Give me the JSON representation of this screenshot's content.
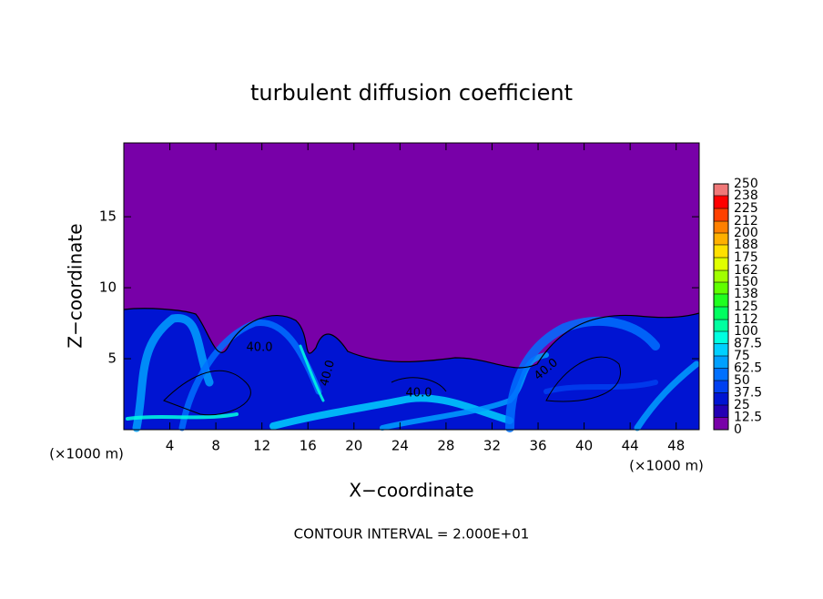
{
  "chart_data": {
    "type": "contour",
    "title": "turbulent diffusion coefficient",
    "xlabel": "X−coordinate",
    "ylabel": "Z−coordinate",
    "x_unit_left": "(×1000 m)",
    "x_unit_right": "(×1000 m)",
    "annotation": "CONTOUR INTERVAL = 2.000E+01",
    "xlim": [
      0,
      50
    ],
    "xticks": [
      4,
      8,
      12,
      16,
      20,
      24,
      28,
      32,
      36,
      40,
      44,
      48
    ],
    "ylim": [
      0,
      20.2
    ],
    "yticks": [
      5,
      10,
      15
    ],
    "contour_labels": [
      {
        "value": 40,
        "label": "40.0"
      },
      {
        "value": 40,
        "label": "40.0"
      },
      {
        "value": 40,
        "label": "40.0"
      },
      {
        "value": 40,
        "label": "40.0"
      }
    ],
    "colorbar": {
      "levels": [
        0,
        12.5,
        25,
        37.5,
        50,
        62.5,
        75,
        87.5,
        100,
        112,
        125,
        138,
        150,
        162,
        175,
        188,
        200,
        212,
        225,
        238,
        250
      ],
      "colors": [
        "#7800a8",
        "#2400b4",
        "#0014d2",
        "#0040f0",
        "#0070ff",
        "#00a0ff",
        "#00d0ff",
        "#00ffe0",
        "#00ffa0",
        "#00ff60",
        "#20ff20",
        "#60ff00",
        "#a0ff00",
        "#e0ff00",
        "#ffe000",
        "#ffb000",
        "#ff8000",
        "#ff4000",
        "#ff0000",
        "#f07878"
      ]
    }
  }
}
